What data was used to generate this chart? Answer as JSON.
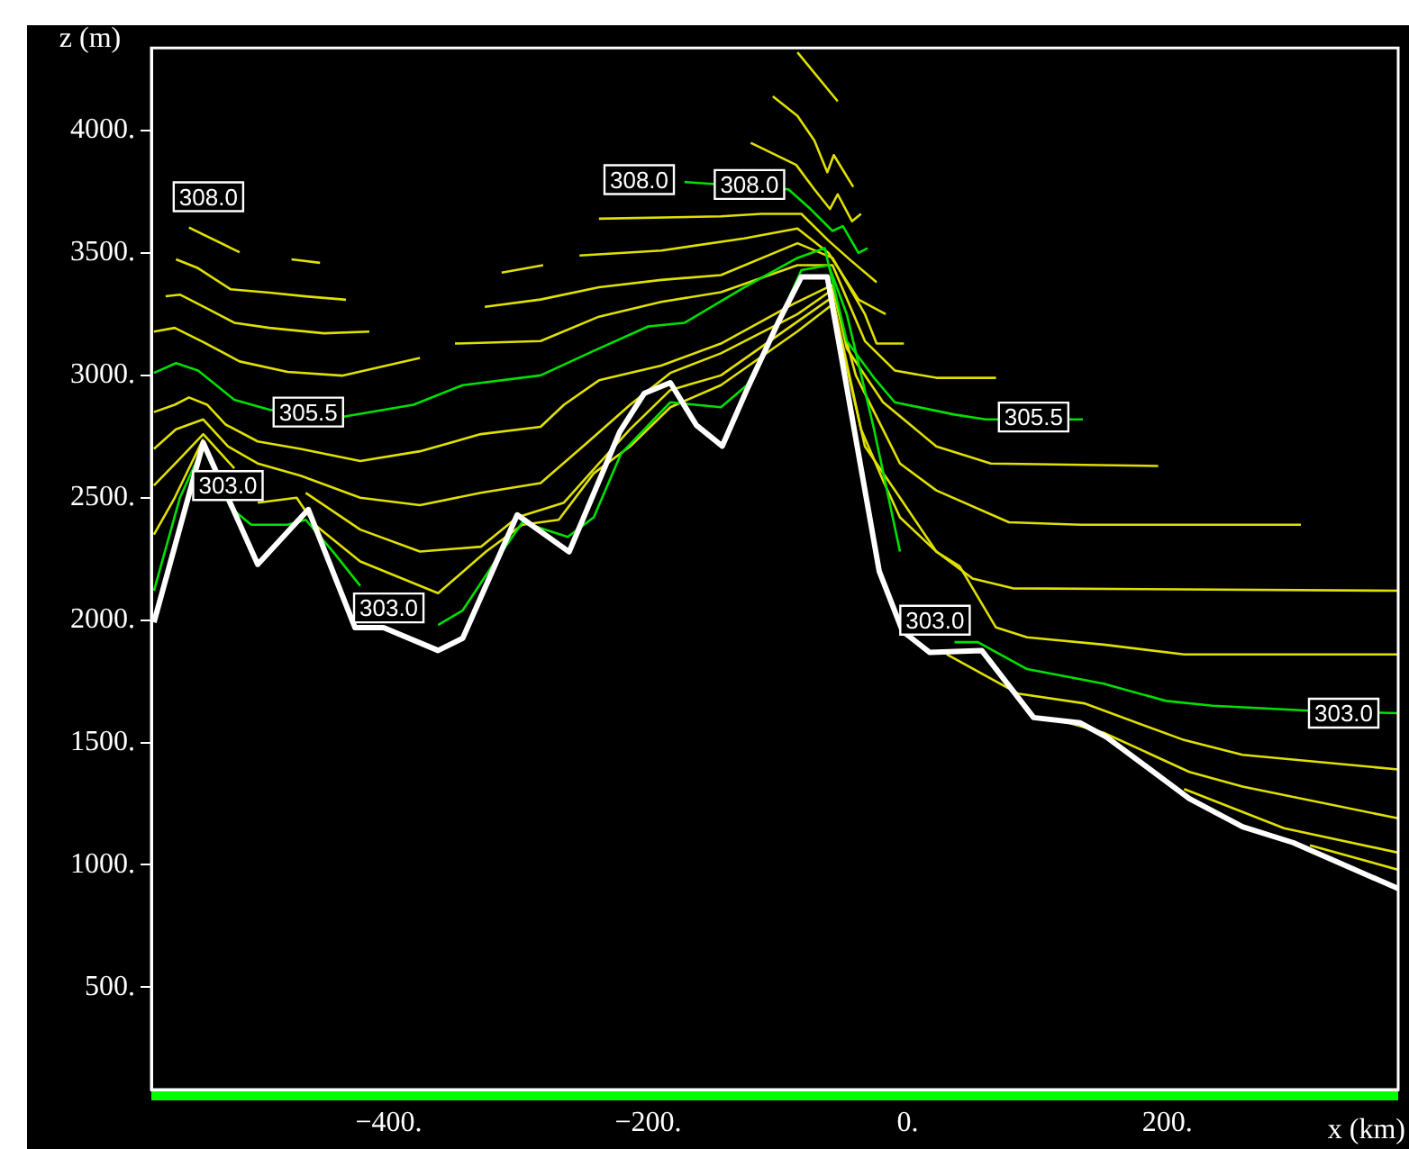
{
  "chart_data": {
    "type": "line",
    "xlabel": "x (km)",
    "ylabel": "z (m)",
    "xlim": [
      -583,
      378
    ],
    "ylim": [
      82,
      4338
    ],
    "xticks": [
      {
        "value": -580,
        "label": null
      },
      {
        "value": -560,
        "label": null
      },
      {
        "value": -540,
        "label": null
      },
      {
        "value": -520,
        "label": null
      },
      {
        "value": -500,
        "label": null
      },
      {
        "value": -480,
        "label": null
      },
      {
        "value": -460,
        "label": null
      },
      {
        "value": -440,
        "label": null
      },
      {
        "value": -420,
        "label": null
      },
      {
        "value": -400,
        "label": "−400."
      },
      {
        "value": -380,
        "label": null
      },
      {
        "value": -360,
        "label": null
      },
      {
        "value": -340,
        "label": null
      },
      {
        "value": -320,
        "label": null
      },
      {
        "value": -300,
        "label": null
      },
      {
        "value": -280,
        "label": null
      },
      {
        "value": -260,
        "label": null
      },
      {
        "value": -240,
        "label": null
      },
      {
        "value": -220,
        "label": null
      },
      {
        "value": -200,
        "label": "−200."
      },
      {
        "value": -180,
        "label": null
      },
      {
        "value": -160,
        "label": null
      },
      {
        "value": -140,
        "label": null
      },
      {
        "value": -120,
        "label": null
      },
      {
        "value": -100,
        "label": null
      },
      {
        "value": -80,
        "label": null
      },
      {
        "value": -60,
        "label": null
      },
      {
        "value": -40,
        "label": null
      },
      {
        "value": -20,
        "label": null
      },
      {
        "value": 0,
        "label": "0."
      },
      {
        "value": 20,
        "label": null
      },
      {
        "value": 40,
        "label": null
      },
      {
        "value": 60,
        "label": null
      },
      {
        "value": 80,
        "label": null
      },
      {
        "value": 100,
        "label": null
      },
      {
        "value": 120,
        "label": null
      },
      {
        "value": 140,
        "label": null
      },
      {
        "value": 160,
        "label": null
      },
      {
        "value": 180,
        "label": null
      },
      {
        "value": 200,
        "label": "200."
      },
      {
        "value": 220,
        "label": null
      },
      {
        "value": 240,
        "label": null
      },
      {
        "value": 260,
        "label": null
      },
      {
        "value": 280,
        "label": null
      },
      {
        "value": 300,
        "label": null
      },
      {
        "value": 320,
        "label": null
      },
      {
        "value": 340,
        "label": null
      },
      {
        "value": 360,
        "label": null
      }
    ],
    "yticks": [
      {
        "value": 500,
        "label": "500."
      },
      {
        "value": 1000,
        "label": "1000."
      },
      {
        "value": 1500,
        "label": "1500."
      },
      {
        "value": 2000,
        "label": "2000."
      },
      {
        "value": 2500,
        "label": "2500."
      },
      {
        "value": 3000,
        "label": "3000."
      },
      {
        "value": 3500,
        "label": "3500."
      },
      {
        "value": 4000,
        "label": "4000."
      }
    ],
    "series": [
      {
        "color": "#ffffff",
        "x": [
          -581,
          -543,
          -501,
          -462,
          -426,
          -404,
          -362,
          -343,
          -301,
          -261,
          -222,
          -203,
          -183,
          -163,
          -143,
          -124,
          -100,
          -82,
          -62,
          -22,
          -4,
          17,
          57,
          97,
          133,
          153,
          217,
          258,
          297,
          378
        ],
        "values": [
          1991,
          2725,
          2228,
          2452,
          1969,
          1969,
          1876,
          1926,
          2430,
          2279,
          2769,
          2927,
          2970,
          2797,
          2711,
          2941,
          3215,
          3402,
          3402,
          2200,
          1955,
          1868,
          1876,
          1602,
          1580,
          1523,
          1271,
          1156,
          1091,
          903
        ]
      },
      {
        "color": "#00e000",
        "x": [
          -581,
          -564,
          -547,
          -519,
          -492,
          -436,
          -381,
          -343,
          -283,
          -242,
          -200,
          -172,
          -126,
          -85,
          -64,
          -47,
          -26,
          -10,
          36,
          60,
          135
        ],
        "values": [
          3010,
          3050,
          3020,
          2900,
          2860,
          2830,
          2880,
          2960,
          3000,
          3100,
          3200,
          3215,
          3360,
          3480,
          3520,
          3140,
          2990,
          2890,
          2840,
          2820,
          2820
        ]
      },
      {
        "color": "#00e000",
        "x": [
          -172,
          -92,
          -75,
          -58,
          -50,
          -38,
          -31
        ],
        "values": [
          3790,
          3760,
          3680,
          3590,
          3610,
          3500,
          3520
        ]
      },
      {
        "color": "#00e000",
        "x": [
          -581,
          -561,
          -543,
          -522,
          -506,
          -478,
          -464,
          -443,
          -422,
          -404,
          -362,
          -343,
          -318,
          -297,
          -262,
          -242,
          -221,
          -183,
          -144,
          -124,
          -103,
          -82,
          -61,
          -47,
          -26,
          -6,
          8,
          36,
          54,
          92,
          151,
          199,
          235,
          310,
          378
        ],
        "values": [
          2120,
          2500,
          2710,
          2460,
          2390,
          2390,
          2410,
          2280,
          2140,
          null,
          1980,
          2040,
          2240,
          2400,
          2340,
          2420,
          2680,
          2890,
          2870,
          2960,
          3180,
          3430,
          3450,
          3250,
          2780,
          2280,
          null,
          1910,
          1910,
          1800,
          1740,
          1670,
          1650,
          1630,
          1620
        ]
      },
      {
        "color": "#e0e000",
        "x": [
          -554,
          -515
        ],
        "values": [
          3604,
          3503
        ]
      },
      {
        "color": "#e0e000",
        "x": [
          -475,
          -453
        ],
        "values": [
          3474,
          3460
        ]
      },
      {
        "color": "#e0e000",
        "x": [
          -564,
          -547,
          -522,
          -492,
          -464,
          -433
        ],
        "values": [
          3474,
          3438,
          3352,
          3338,
          3323,
          3309
        ]
      },
      {
        "color": "#e0e000",
        "x": [
          -572,
          -561,
          -540,
          -519,
          -492,
          -450,
          -415
        ],
        "values": [
          3323,
          3330,
          3273,
          3215,
          3194,
          3172,
          3179
        ]
      },
      {
        "color": "#e0e000",
        "x": [
          -581,
          -565,
          -543,
          -515,
          -478,
          -436,
          -376
        ],
        "values": [
          3179,
          3194,
          3136,
          3057,
          3014,
          2999,
          3071
        ]
      },
      {
        "color": "#e0e000",
        "x": [
          -85,
          -54
        ],
        "values": [
          4320,
          4120
        ]
      },
      {
        "color": "#e0e000",
        "x": [
          -104,
          -85,
          -72,
          -62,
          -57,
          -42
        ],
        "values": [
          4140,
          4060,
          3960,
          3830,
          3900,
          3770
        ]
      },
      {
        "color": "#e0e000",
        "x": [
          -121,
          -86,
          -72,
          -60,
          -54,
          -43,
          -36
        ],
        "values": [
          3950,
          3860,
          3760,
          3680,
          3740,
          3630,
          3660
        ]
      },
      {
        "color": "#e0e000",
        "x": [
          -238,
          -144,
          -113,
          -82,
          -61,
          -44,
          -24
        ],
        "values": [
          3640,
          3650,
          3660,
          3660,
          3550,
          3470,
          3380
        ]
      },
      {
        "color": "#e0e000",
        "x": [
          -313,
          -281
        ],
        "values": [
          3420,
          3450
        ]
      },
      {
        "color": "#e0e000",
        "x": [
          -253,
          -190,
          -126,
          -85,
          -61,
          -38,
          -17
        ],
        "values": [
          3490,
          3510,
          3560,
          3600,
          3500,
          3310,
          3250
        ]
      },
      {
        "color": "#e0e000",
        "x": [
          -326,
          -283,
          -238,
          -190,
          -144,
          -85,
          -58,
          -33,
          -24,
          -3
        ],
        "values": [
          3280,
          3310,
          3360,
          3390,
          3410,
          3540,
          3480,
          3250,
          3130,
          3130
        ]
      },
      {
        "color": "#e0e000",
        "x": [
          -349,
          -283,
          -238,
          -190,
          -144,
          -85,
          -58,
          -33,
          -10,
          22,
          68
        ],
        "values": [
          3130,
          3140,
          3240,
          3300,
          3340,
          3450,
          3450,
          3140,
          3020,
          2990,
          2990
        ]
      },
      {
        "color": "#e0e000",
        "x": [
          -581,
          -565,
          -554,
          -540,
          -526,
          -501,
          -468,
          -422,
          -376,
          -329,
          -283,
          -265,
          -238,
          -190,
          -144,
          -89,
          -58,
          -47,
          -19,
          22,
          64,
          193
        ],
        "values": [
          2850,
          2880,
          2910,
          2880,
          2800,
          2730,
          2700,
          2650,
          2690,
          2760,
          2790,
          2880,
          2980,
          3040,
          3130,
          3290,
          3370,
          3110,
          2890,
          2710,
          2640,
          2630
        ]
      },
      {
        "color": "#e0e000",
        "x": [
          -581,
          -564,
          -543,
          -524,
          -501,
          -468,
          -422,
          -376,
          -329,
          -283,
          -246,
          -214,
          -183,
          -144,
          -85,
          -58,
          -40,
          -6,
          22,
          78,
          133,
          303
        ],
        "values": [
          2700,
          2780,
          2820,
          2710,
          2640,
          2590,
          2500,
          2470,
          2520,
          2560,
          2730,
          2880,
          3010,
          3090,
          3250,
          3350,
          3000,
          2640,
          2530,
          2400,
          2390,
          2390
        ]
      },
      {
        "color": "#e0e000",
        "x": [
          -581,
          -561,
          -543,
          -519,
          -501,
          -464,
          -422,
          -376,
          -329,
          -301,
          -265,
          -238,
          -214,
          -183,
          -144,
          -85,
          -58,
          -36,
          -19,
          -6,
          22,
          50,
          81,
          378
        ],
        "values": [
          2550,
          2660,
          2760,
          2620,
          null,
          2520,
          2370,
          2280,
          2300,
          2420,
          2480,
          2640,
          2780,
          2940,
          3000,
          3220,
          3320,
          2780,
          2570,
          2420,
          2280,
          2170,
          2130,
          2120
        ]
      },
      {
        "color": "#e0e000",
        "x": [
          -581,
          -565,
          -543,
          -519,
          -501,
          -471,
          -457,
          -422,
          -362,
          -325,
          -297,
          -269,
          -242,
          -214,
          -183,
          -144,
          -85,
          -58,
          -33,
          -6,
          22,
          40,
          68,
          92,
          151,
          213,
          378
        ],
        "values": [
          2350,
          2500,
          2740,
          null,
          2480,
          2500,
          2390,
          2240,
          2110,
          2280,
          2390,
          2410,
          2600,
          2710,
          2870,
          2960,
          3180,
          3290,
          2710,
          2500,
          2280,
          2220,
          1970,
          1930,
          1900,
          1860,
          1860
        ]
      },
      {
        "color": "#e0e000",
        "x": [
          30,
          85,
          136,
          213,
          258,
          378
        ],
        "values": [
          1860,
          1700,
          1660,
          1510,
          1450,
          1390
        ]
      },
      {
        "color": "#e0e000",
        "x": [
          124,
          151,
          217,
          258,
          378
        ],
        "values": [
          1580,
          1540,
          1380,
          1320,
          1190
        ]
      },
      {
        "color": "#e0e000",
        "x": [
          213,
          290,
          378
        ],
        "values": [
          1310,
          1150,
          1050
        ]
      },
      {
        "color": "#e0e000",
        "x": [
          310,
          378
        ],
        "values": [
          1080,
          980
        ]
      }
    ],
    "annotations": [
      {
        "text": "308.0",
        "x": -539,
        "y": 3730
      },
      {
        "text": "308.0",
        "x": -207,
        "y": 3800
      },
      {
        "text": "308.0",
        "x": -122,
        "y": 3780
      },
      {
        "text": "305.5",
        "x": -462,
        "y": 2850
      },
      {
        "text": "305.5",
        "x": 97,
        "y": 2830
      },
      {
        "text": "303.0",
        "x": -524,
        "y": 2550
      },
      {
        "text": "303.0",
        "x": -400,
        "y": 2050
      },
      {
        "text": "303.0",
        "x": 21,
        "y": 2000
      },
      {
        "text": "303.0",
        "x": 336,
        "y": 1620
      }
    ]
  }
}
